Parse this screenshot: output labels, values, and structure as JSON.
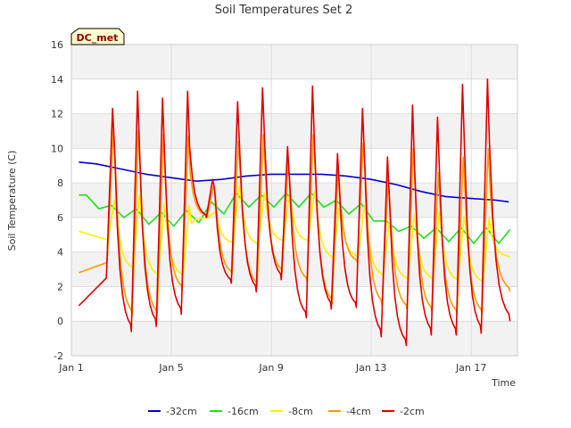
{
  "chart_data": {
    "type": "line",
    "title": "Soil Temperatures Set 2",
    "xlabel": "Time",
    "ylabel": "Soil Temperature (C)",
    "tag": "DC_met",
    "xlim": [
      1.0,
      18.85
    ],
    "ylim": [
      -2,
      16
    ],
    "y_ticks": [
      -2,
      0,
      2,
      4,
      6,
      8,
      10,
      12,
      14,
      16
    ],
    "x_ticks": [
      {
        "day": 1,
        "label": "Jan 1"
      },
      {
        "day": 5,
        "label": "Jan 5"
      },
      {
        "day": 9,
        "label": "Jan 9"
      },
      {
        "day": 13,
        "label": "Jan 13"
      },
      {
        "day": 17,
        "label": "Jan 17"
      }
    ],
    "grid": true,
    "alternating_bands": true,
    "legend_position": "bottom-center",
    "colors": {
      "d32": "#0000cc",
      "d16": "#22dd22",
      "d8": "#ffee00",
      "d4": "#ff9900",
      "d2": "#dd0000",
      "band": "#f2f2f2",
      "grid": "#dddddd",
      "tag_bg": "#ffffcc"
    },
    "series": [
      {
        "key": "d32",
        "name": "-32cm",
        "x": [
          1.3,
          2,
          3,
          4,
          5,
          6,
          7,
          8,
          9,
          10,
          11,
          12,
          13,
          14,
          15,
          16,
          17,
          18,
          18.5
        ],
        "y": [
          9.2,
          9.1,
          8.8,
          8.5,
          8.3,
          8.1,
          8.2,
          8.4,
          8.5,
          8.5,
          8.5,
          8.4,
          8.2,
          7.9,
          7.5,
          7.2,
          7.1,
          7.0,
          6.9
        ]
      },
      {
        "key": "d16",
        "name": "-16cm",
        "phase": 0.62,
        "mins_x": [
          2.1,
          3.1,
          4.1,
          5.1,
          6.1,
          7.1,
          8.1,
          9.1,
          10.1,
          11.1,
          12.1,
          13.1,
          14.1,
          15.1,
          16.1,
          17.1,
          18.1
        ],
        "max_y": [
          7.3,
          6.7,
          6.5,
          6.3,
          6.4,
          6.9,
          7.4,
          7.3,
          7.4,
          7.4,
          7.0,
          6.8,
          5.8,
          5.5,
          5.4,
          5.4,
          5.4
        ],
        "min_y": [
          6.5,
          6.0,
          5.6,
          5.5,
          5.7,
          6.2,
          6.6,
          6.6,
          6.6,
          6.6,
          6.2,
          5.8,
          5.2,
          4.8,
          4.6,
          4.5,
          4.5
        ],
        "end_y": 5.3
      },
      {
        "key": "d8",
        "name": "-8cm",
        "peaks_x": [
          2.72,
          3.72,
          4.72,
          5.72,
          6.72,
          7.72,
          8.72,
          9.72,
          10.72,
          11.72,
          12.72,
          13.72,
          14.72,
          15.72,
          16.72,
          17.72
        ],
        "peaks_y": [
          7.0,
          7.3,
          6.8,
          6.7,
          6.3,
          7.8,
          7.4,
          7.3,
          7.5,
          6.6,
          6.7,
          5.7,
          6.2,
          6.3,
          6.1,
          6.0
        ],
        "start_y": 5.2,
        "mins_y": [
          4.7,
          3.0,
          2.6,
          2.6,
          6.0,
          4.5,
          4.4,
          4.6,
          4.6,
          3.6,
          3.7,
          2.6,
          2.4,
          2.4,
          2.3,
          2.2
        ],
        "end_y": 3.7
      },
      {
        "key": "d4",
        "name": "-4cm",
        "peaks_x": [
          2.68,
          3.68,
          4.68,
          5.68,
          6.68,
          7.68,
          8.68,
          9.68,
          10.68,
          11.68,
          12.68,
          13.68,
          14.68,
          15.68,
          16.68,
          17.68
        ],
        "peaks_y": [
          11.0,
          11.0,
          10.8,
          10.7,
          7.8,
          10.4,
          10.8,
          9.3,
          10.8,
          9.1,
          10.3,
          8.3,
          10.0,
          8.6,
          9.5,
          10.0
        ],
        "start_y": 2.8,
        "mins_y": [
          3.4,
          0.3,
          0.3,
          1.8,
          6.0,
          2.7,
          2.0,
          2.8,
          2.3,
          1.0,
          3.4,
          0.9,
          0.7,
          0.5,
          0.4,
          0.4
        ],
        "end_y": 1.7
      },
      {
        "key": "d2",
        "name": "-2cm",
        "peaks_x": [
          2.65,
          3.65,
          4.65,
          5.65,
          6.65,
          7.65,
          8.65,
          9.65,
          10.65,
          11.65,
          12.65,
          13.65,
          14.65,
          15.65,
          16.65,
          17.65
        ],
        "peaks_y": [
          12.3,
          13.3,
          12.9,
          13.3,
          8.2,
          12.7,
          13.5,
          10.1,
          13.6,
          9.7,
          12.3,
          9.5,
          12.5,
          11.8,
          13.7,
          14.0
        ],
        "start_y": 0.9,
        "mins_y": [
          2.5,
          -0.6,
          -0.3,
          0.4,
          6.0,
          2.2,
          1.7,
          2.4,
          0.2,
          0.7,
          0.8,
          -0.9,
          -1.4,
          -0.8,
          -0.8,
          -0.7
        ],
        "end_y": 0.0
      }
    ]
  }
}
